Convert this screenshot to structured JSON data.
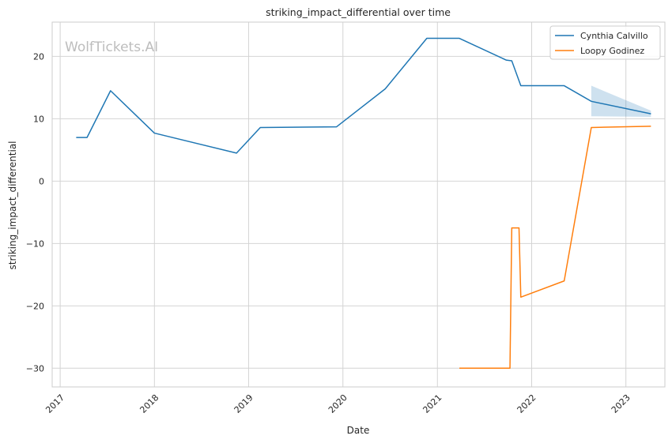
{
  "chart_data": {
    "type": "line",
    "title": "striking_impact_differential over time",
    "xlabel": "Date",
    "ylabel": "striking_impact_differential",
    "watermark": "WolfTickets.AI",
    "xlim": [
      "2016-12-01",
      "2023-06-01"
    ],
    "ylim": [
      -33,
      25.5
    ],
    "x_ticks": [
      "2017-01-01",
      "2018-01-01",
      "2019-01-01",
      "2020-01-01",
      "2021-01-01",
      "2022-01-01",
      "2023-01-01"
    ],
    "x_tick_labels": [
      "2017",
      "2018",
      "2019",
      "2020",
      "2021",
      "2022",
      "2023"
    ],
    "y_ticks": [
      20,
      10,
      0,
      -10,
      -20,
      -30
    ],
    "y_tick_labels": [
      "20",
      "10",
      "0",
      "−10",
      "−20",
      "−30"
    ],
    "grid": true,
    "legend": "top-right",
    "series": [
      {
        "name": "Cynthia Calvillo",
        "color": "#1f77b4",
        "x": [
          "2017-03-04",
          "2017-04-15",
          "2017-07-15",
          "2018-01-01",
          "2018-11-15",
          "2019-02-15",
          "2019-12-07",
          "2020-06-13",
          "2020-11-21",
          "2021-03-27",
          "2021-09-25",
          "2021-10-16",
          "2021-11-20",
          "2022-05-07",
          "2022-08-20",
          "2023-04-08"
        ],
        "y": [
          7.0,
          7.0,
          14.5,
          7.7,
          4.5,
          8.6,
          8.7,
          14.8,
          22.9,
          22.9,
          19.4,
          19.3,
          15.3,
          15.3,
          12.8,
          10.8
        ],
        "band": {
          "x": [
            "2022-08-20",
            "2023-04-08"
          ],
          "lower": [
            10.4,
            10.3
          ],
          "upper": [
            15.3,
            11.3
          ]
        }
      },
      {
        "name": "Loopy Godinez",
        "color": "#ff7f0e",
        "x": [
          "2021-03-27",
          "2021-10-09",
          "2021-10-16",
          "2021-11-13",
          "2021-11-20",
          "2022-05-07",
          "2022-08-20",
          "2023-04-08"
        ],
        "y": [
          -30,
          -30,
          -7.5,
          -7.5,
          -18.6,
          -16.0,
          8.6,
          8.8
        ]
      }
    ]
  }
}
